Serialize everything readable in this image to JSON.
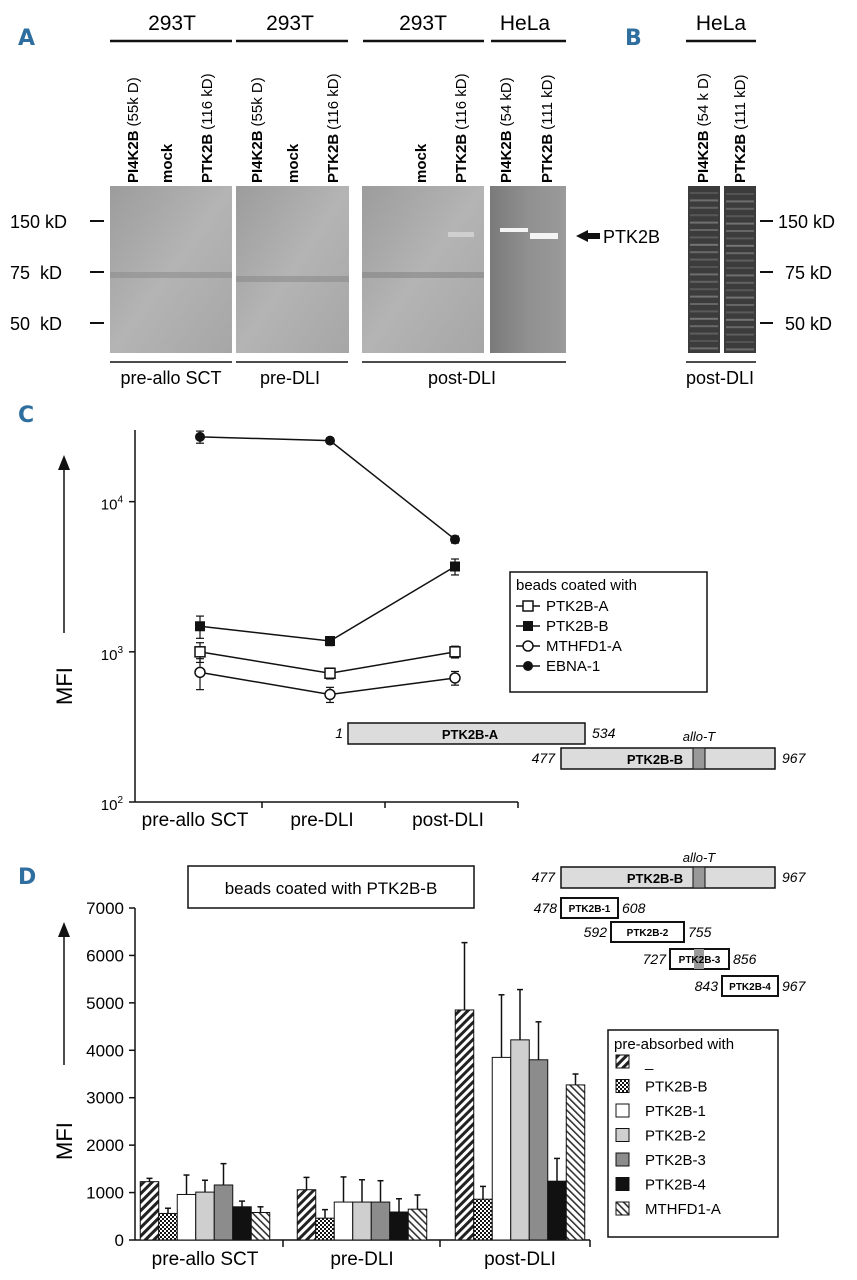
{
  "panels": {
    "a": "A",
    "b": "B",
    "c": "C",
    "d": "D"
  },
  "blots": {
    "groups": [
      {
        "cell": "293T",
        "lanes": [
          "PI4K2B (55k D)",
          "mock",
          "PTK2B (116 kD)"
        ],
        "condition": "pre-allo SCT"
      },
      {
        "cell": "293T",
        "lanes": [
          "PI4K2B (55k D)",
          "mock",
          "PTK2B (116 kD)"
        ],
        "condition": "pre-DLI"
      },
      {
        "cell": "293T",
        "lanes": [
          "mock",
          "PTK2B (116 kD)"
        ],
        "condition": "post-DLI"
      },
      {
        "cell": "HeLa",
        "lanes": [
          "PI4K2B (54 kD)",
          "PTK2B (111 kD)"
        ],
        "condition": ""
      }
    ],
    "b_group": {
      "cell": "HeLa",
      "lanes": [
        "PI4K2B (54 k D)",
        "PTK2B (111 kD)"
      ],
      "condition": "post-DLI"
    },
    "markers": [
      "150 kD",
      "75  kD",
      "50  kD"
    ],
    "markers_b": [
      "150 kD",
      "75 kD",
      "50 kD"
    ],
    "arrow_label": "PTK2B"
  },
  "chart_c": {
    "chart_data": {
      "type": "line",
      "categories": [
        "pre-allo SCT",
        "pre-DLI",
        "post-DLI"
      ],
      "ylabel": "MFI",
      "yscale": "log",
      "ylim": [
        100,
        30000
      ],
      "yticks": [
        {
          "base": "10",
          "exp": "2"
        },
        {
          "base": "10",
          "exp": "3"
        },
        {
          "base": "10",
          "exp": "4"
        }
      ],
      "legend_title": "beads coated with",
      "series": [
        {
          "name": "PTK2B-A",
          "marker": "open-square",
          "values": [
            1000,
            720,
            1000
          ],
          "err": [
            150,
            60,
            90
          ]
        },
        {
          "name": "PTK2B-B",
          "marker": "filled-square",
          "values": [
            1480,
            1180,
            3700
          ],
          "err": [
            250,
            80,
            450
          ]
        },
        {
          "name": "MTHFD1-A",
          "marker": "open-circle",
          "values": [
            730,
            520,
            670
          ],
          "err": [
            170,
            60,
            70
          ]
        },
        {
          "name": "EBNA-1",
          "marker": "filled-circle",
          "values": [
            27000,
            25500,
            5600
          ],
          "err": [
            2500,
            900,
            300
          ]
        }
      ]
    },
    "constructs": [
      {
        "start": "1",
        "label": "PTK2B-A",
        "end": "534"
      },
      {
        "start": "477",
        "label": "PTK2B-B",
        "end": "967",
        "note": "allo-T"
      }
    ]
  },
  "chart_d": {
    "chart_data": {
      "type": "bar",
      "categories": [
        "pre-allo SCT",
        "pre-DLI",
        "post-DLI"
      ],
      "ylabel": "MFI",
      "ylim": [
        0,
        7000
      ],
      "yticks": [
        "0",
        "1000",
        "2000",
        "3000",
        "4000",
        "5000",
        "6000",
        "7000"
      ],
      "title": "beads coated with PTK2B-B",
      "legend_title": "pre-absorbed with",
      "series": [
        {
          "name": "_",
          "pattern": "hatch",
          "values": [
            1230,
            1060,
            4850
          ],
          "err": [
            70,
            260,
            1420
          ]
        },
        {
          "name": "PTK2B-B",
          "pattern": "check",
          "values": [
            560,
            460,
            860
          ],
          "err": [
            110,
            180,
            270
          ]
        },
        {
          "name": "PTK2B-1",
          "pattern": "white",
          "values": [
            960,
            800,
            3850
          ],
          "err": [
            410,
            530,
            1320
          ]
        },
        {
          "name": "PTK2B-2",
          "pattern": "lightgray",
          "values": [
            1010,
            800,
            4220
          ],
          "err": [
            250,
            470,
            1060
          ]
        },
        {
          "name": "PTK2B-3",
          "pattern": "gray",
          "values": [
            1160,
            800,
            3800
          ],
          "err": [
            450,
            450,
            800
          ]
        },
        {
          "name": "PTK2B-4",
          "pattern": "black",
          "values": [
            700,
            590,
            1240
          ],
          "err": [
            120,
            280,
            480
          ]
        },
        {
          "name": "MTHFD1-A",
          "pattern": "backhatch",
          "values": [
            580,
            650,
            3270
          ],
          "err": [
            120,
            300,
            230
          ]
        }
      ]
    },
    "constructs": [
      {
        "start": "477",
        "label": "PTK2B-B",
        "end": "967",
        "note": "allo-T"
      },
      {
        "start": "478",
        "label": "PTK2B-1",
        "end": "608"
      },
      {
        "start": "592",
        "label": "PTK2B-2",
        "end": "755"
      },
      {
        "start": "727",
        "label": "PTK2B-3",
        "end": "856"
      },
      {
        "start": "843",
        "label": "PTK2B-4",
        "end": "967"
      }
    ]
  },
  "colors": {
    "panel_label": "#2f6f9f",
    "axis": "#111111"
  }
}
